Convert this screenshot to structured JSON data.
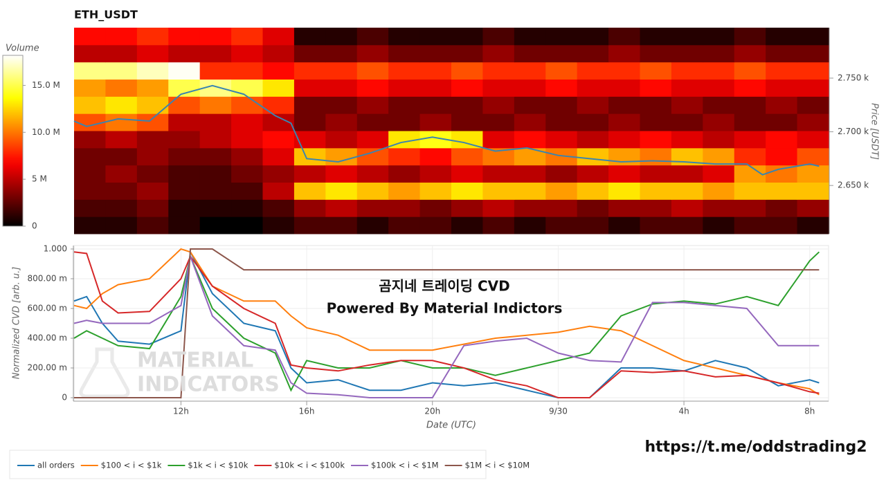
{
  "chart_data": [
    {
      "type": "heatmap",
      "title": "ETH_USDT",
      "ylabel": "Price [USDT]",
      "yaxis_side": "right",
      "colormap": "hot",
      "xlim": [
        8.6,
        32.6
      ],
      "ylim": [
        2605,
        2797
      ],
      "yticks": [
        {
          "value": 2650,
          "label": "2.650 k"
        },
        {
          "value": 2700,
          "label": "2.700 k"
        },
        {
          "value": 2750,
          "label": "2.750 k"
        }
      ],
      "x_bins": [
        8.6,
        9.6,
        10.6,
        11.6,
        12.6,
        13.6,
        14.6,
        15.6,
        16.6,
        17.6,
        18.6,
        19.6,
        20.6,
        21.6,
        22.6,
        23.6,
        24.6,
        25.6,
        26.6,
        27.6,
        28.6,
        29.6,
        30.6,
        31.6,
        32.6
      ],
      "y_bins": [
        2605,
        2621,
        2637,
        2653,
        2669,
        2685,
        2701,
        2717,
        2733,
        2749,
        2765,
        2781,
        2797
      ],
      "z": [
        [
          1,
          1,
          2,
          1,
          0,
          0,
          1,
          2,
          2,
          1,
          2,
          2,
          1,
          2,
          1,
          2,
          2,
          1,
          2,
          2,
          1,
          2,
          2,
          1
        ],
        [
          2,
          2,
          3,
          1,
          1,
          1,
          2,
          4,
          5,
          4,
          4,
          3,
          4,
          5,
          4,
          4,
          3,
          4,
          4,
          5,
          4,
          4,
          3,
          4
        ],
        [
          3,
          3,
          4,
          2,
          2,
          2,
          5,
          12,
          13,
          12,
          11,
          12,
          13,
          12,
          12,
          11,
          12,
          13,
          12,
          12,
          11,
          12,
          12,
          12
        ],
        [
          3,
          4,
          3,
          2,
          2,
          3,
          4,
          5,
          6,
          5,
          4,
          5,
          6,
          5,
          5,
          4,
          5,
          6,
          5,
          5,
          6,
          11,
          10,
          11
        ],
        [
          3,
          3,
          4,
          3,
          3,
          4,
          6,
          12,
          11,
          9,
          8,
          7,
          9,
          10,
          11,
          10,
          12,
          11,
          10,
          12,
          11,
          8,
          7,
          9
        ],
        [
          4,
          5,
          4,
          4,
          5,
          6,
          7,
          6,
          5,
          6,
          13,
          14,
          13,
          6,
          7,
          6,
          5,
          6,
          7,
          6,
          5,
          6,
          7,
          6
        ],
        [
          9,
          10,
          9,
          5,
          5,
          6,
          5,
          3,
          4,
          3,
          3,
          4,
          3,
          3,
          4,
          3,
          3,
          4,
          3,
          3,
          4,
          3,
          3,
          4
        ],
        [
          12,
          13,
          12,
          9,
          10,
          9,
          8,
          3,
          3,
          4,
          3,
          3,
          3,
          4,
          3,
          3,
          4,
          3,
          3,
          4,
          3,
          3,
          4,
          3
        ],
        [
          11,
          10,
          11,
          15,
          16,
          15,
          13,
          6,
          6,
          7,
          6,
          6,
          7,
          6,
          6,
          7,
          6,
          6,
          7,
          6,
          6,
          7,
          6,
          6
        ],
        [
          16,
          16,
          17,
          18,
          8,
          8,
          7,
          8,
          8,
          9,
          8,
          8,
          9,
          8,
          8,
          9,
          8,
          8,
          9,
          8,
          8,
          9,
          8,
          8
        ],
        [
          5,
          5,
          6,
          5,
          5,
          6,
          5,
          3,
          3,
          4,
          3,
          3,
          3,
          4,
          3,
          3,
          3,
          4,
          3,
          3,
          3,
          4,
          3,
          3
        ],
        [
          7,
          7,
          8,
          7,
          7,
          8,
          6,
          1,
          1,
          2,
          1,
          1,
          1,
          2,
          1,
          1,
          1,
          2,
          1,
          1,
          1,
          2,
          1,
          1
        ]
      ],
      "colorbar": {
        "label": "Volume",
        "lim": [
          0,
          18.2
        ],
        "ticks": [
          0,
          {
            "value": 5,
            "label": "5 M"
          },
          {
            "value": 10,
            "label": "10.0 M"
          },
          {
            "value": 15,
            "label": "15.0 M"
          }
        ]
      },
      "line": {
        "color": "#3a84b0",
        "x": [
          8.6,
          9,
          10,
          11,
          12,
          13,
          14,
          15,
          15.5,
          16,
          17,
          18,
          19,
          20,
          21,
          22,
          23,
          24,
          25,
          26,
          27,
          28,
          29,
          30,
          30.5,
          31,
          32,
          32.3
        ],
        "values": [
          2710,
          2705,
          2712,
          2710,
          2735,
          2743,
          2735,
          2715,
          2708,
          2675,
          2672,
          2680,
          2690,
          2695,
          2690,
          2682,
          2685,
          2678,
          2675,
          2672,
          2673,
          2672,
          2670,
          2670,
          2660,
          2665,
          2670,
          2668
        ]
      }
    },
    {
      "type": "line",
      "xlabel": "Date (UTC)",
      "ylabel": "Normalized CVD [arb. u.]",
      "grid": true,
      "xlim": [
        8.6,
        32.6
      ],
      "ylim": [
        0,
        1
      ],
      "xticks": [
        {
          "value": 12,
          "label": "12h"
        },
        {
          "value": 16,
          "label": "16h"
        },
        {
          "value": 20,
          "label": "20h"
        },
        {
          "value": 24,
          "label": "9/30"
        },
        {
          "value": 28,
          "label": "4h"
        },
        {
          "value": 32,
          "label": "8h"
        }
      ],
      "yticks": [
        0,
        {
          "value": 0.2,
          "label": "200.00 m"
        },
        {
          "value": 0.4,
          "label": "400.00 m"
        },
        {
          "value": 0.6,
          "label": "600.00 m"
        },
        {
          "value": 0.8,
          "label": "800.00 m"
        },
        {
          "value": 1,
          "label": "1.000"
        }
      ],
      "x": [
        8.6,
        9,
        9.5,
        10,
        11,
        12,
        12.3,
        13,
        14,
        15,
        15.5,
        16,
        17,
        18,
        19,
        20,
        21,
        22,
        23,
        24,
        25,
        26,
        27,
        28,
        29,
        30,
        31,
        32,
        32.3
      ],
      "series": [
        {
          "name": "all orders",
          "color": "#1f77b4",
          "values": [
            0.65,
            0.68,
            0.5,
            0.38,
            0.36,
            0.45,
            0.98,
            0.7,
            0.5,
            0.45,
            0.2,
            0.1,
            0.12,
            0.05,
            0.05,
            0.1,
            0.08,
            0.1,
            0.05,
            0.0,
            0.0,
            0.2,
            0.2,
            0.18,
            0.25,
            0.2,
            0.08,
            0.12,
            0.1
          ]
        },
        {
          "name": "$100 < i < $1k",
          "color": "#ff7f0e",
          "values": [
            0.62,
            0.6,
            0.7,
            0.76,
            0.8,
            1.0,
            0.98,
            0.75,
            0.65,
            0.65,
            0.55,
            0.47,
            0.42,
            0.32,
            0.32,
            0.32,
            0.36,
            0.4,
            0.42,
            0.44,
            0.48,
            0.45,
            0.35,
            0.25,
            0.2,
            0.15,
            0.1,
            0.06,
            0.02
          ]
        },
        {
          "name": "$1k < i < $10k",
          "color": "#2ca02c",
          "values": [
            0.4,
            0.45,
            0.4,
            0.35,
            0.33,
            0.68,
            0.95,
            0.6,
            0.4,
            0.3,
            0.05,
            0.25,
            0.2,
            0.2,
            0.25,
            0.2,
            0.2,
            0.15,
            0.2,
            0.25,
            0.3,
            0.55,
            0.63,
            0.65,
            0.63,
            0.68,
            0.62,
            0.92,
            0.98
          ]
        },
        {
          "name": "$10k < i < $100k",
          "color": "#d62728",
          "values": [
            0.98,
            0.97,
            0.65,
            0.57,
            0.58,
            0.8,
            0.95,
            0.75,
            0.6,
            0.5,
            0.22,
            0.2,
            0.18,
            0.22,
            0.25,
            0.25,
            0.2,
            0.12,
            0.08,
            0.0,
            0.0,
            0.18,
            0.17,
            0.18,
            0.14,
            0.15,
            0.1,
            0.04,
            0.03
          ]
        },
        {
          "name": "$100k < i < $1M",
          "color": "#9467bd",
          "values": [
            0.5,
            0.52,
            0.5,
            0.5,
            0.5,
            0.62,
            0.95,
            0.55,
            0.35,
            0.32,
            0.1,
            0.03,
            0.02,
            0.0,
            0.0,
            0.0,
            0.35,
            0.38,
            0.4,
            0.3,
            0.25,
            0.24,
            0.64,
            0.64,
            0.62,
            0.6,
            0.35,
            0.35,
            0.35
          ]
        },
        {
          "name": "$1M < i < $10M",
          "color": "#8c564b",
          "values": [
            0,
            0,
            0,
            0,
            0,
            0,
            1.0,
            1.0,
            0.86,
            0.86,
            0.86,
            0.86,
            0.86,
            0.86,
            0.86,
            0.86,
            0.86,
            0.86,
            0.86,
            0.86,
            0.86,
            0.86,
            0.86,
            0.86,
            0.86,
            0.86,
            0.86,
            0.86,
            0.86
          ]
        }
      ],
      "annotations": [
        "곰지네 트레이딩 CVD",
        "Powered By Material Indictors",
        "MATERIAL",
        "INDICATORS",
        "https://t.me/oddstrading2"
      ]
    }
  ]
}
